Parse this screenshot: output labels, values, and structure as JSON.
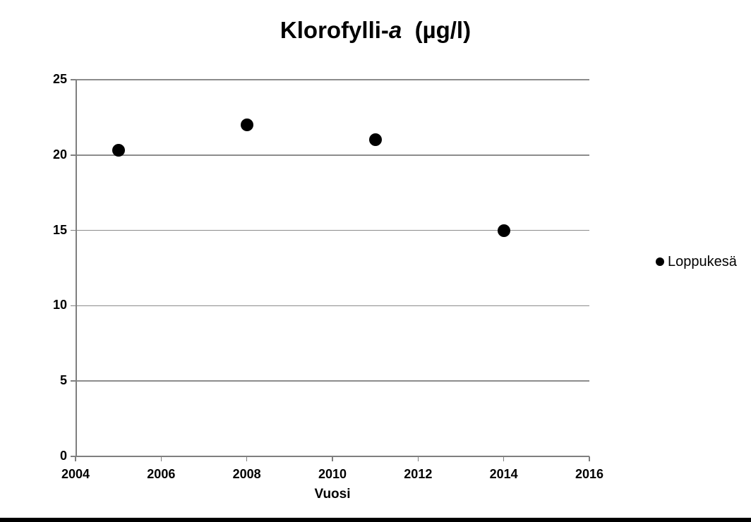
{
  "title": {
    "prefix": "Klorofylli-",
    "italic": "a",
    "suffix": "  (µg/l)",
    "full": "Klorofylli-a (µg/l)"
  },
  "chart_data": {
    "type": "scatter",
    "title": "Klorofylli-a (µg/l)",
    "series": [
      {
        "name": "Loppukesä",
        "marker": "filled-circle",
        "color": "#000000",
        "points": [
          {
            "x": 2005,
            "y": 20.3
          },
          {
            "x": 2008,
            "y": 22
          },
          {
            "x": 2011,
            "y": 21
          },
          {
            "x": 2014,
            "y": 15
          }
        ]
      }
    ],
    "xlabel": "Vuosi",
    "ylabel": "",
    "xlim": [
      2004,
      2016
    ],
    "ylim": [
      0,
      25
    ],
    "x_ticks": [
      2004,
      2006,
      2008,
      2010,
      2012,
      2014,
      2016
    ],
    "y_ticks": [
      0,
      5,
      10,
      15,
      20,
      25
    ],
    "grid": "horizontal-only",
    "legend_position": "middle-right"
  },
  "colors": {
    "gridline": "#8c8c8c",
    "axis": "#7f7f7f",
    "marker": "#000000",
    "text": "#000000",
    "background": "#ffffff",
    "bottom_bar": "#000000"
  }
}
